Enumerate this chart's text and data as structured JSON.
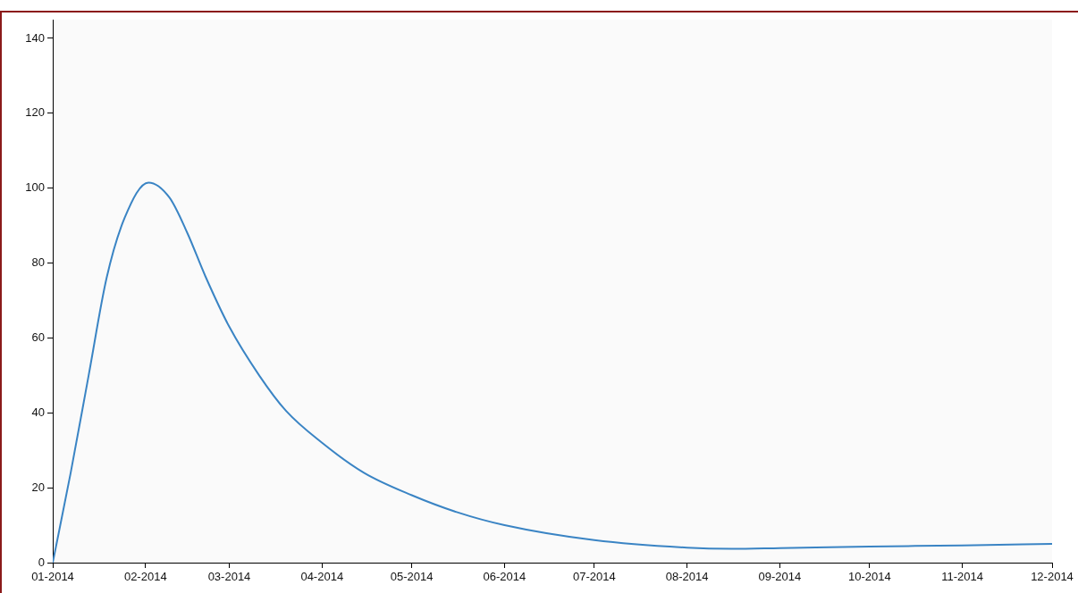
{
  "chart_data": {
    "type": "line",
    "x": [
      "2014-01-01",
      "2014-01-07",
      "2014-01-13",
      "2014-01-19",
      "2014-01-25",
      "2014-02-02",
      "2014-02-09",
      "2014-02-15",
      "2014-02-21",
      "2014-03-01",
      "2014-03-11",
      "2014-03-20",
      "2014-04-01",
      "2014-04-15",
      "2014-05-01",
      "2014-05-16",
      "2014-06-01",
      "2014-07-01",
      "2014-08-01",
      "2014-08-16",
      "2014-09-01",
      "2014-10-01",
      "2014-11-01",
      "2014-12-01"
    ],
    "series": [
      {
        "color": "#3a84c4",
        "values": [
          0,
          24,
          50,
          76,
          92,
          101.5,
          97.5,
          88,
          76.5,
          63,
          50,
          40.5,
          32,
          24,
          18,
          13.5,
          10,
          6,
          4,
          3.7,
          3.9,
          4.3,
          4.6,
          5
        ]
      }
    ],
    "xlim": [
      "2014-01-01",
      "2014-12-01"
    ],
    "xticks": [
      {
        "value": "2014-01-01",
        "label": "01-2014"
      },
      {
        "value": "2014-02-01",
        "label": "02-2014"
      },
      {
        "value": "2014-03-01",
        "label": "03-2014"
      },
      {
        "value": "2014-04-01",
        "label": "04-2014"
      },
      {
        "value": "2014-05-01",
        "label": "05-2014"
      },
      {
        "value": "2014-06-01",
        "label": "06-2014"
      },
      {
        "value": "2014-07-01",
        "label": "07-2014"
      },
      {
        "value": "2014-08-01",
        "label": "08-2014"
      },
      {
        "value": "2014-09-01",
        "label": "09-2014"
      },
      {
        "value": "2014-10-01",
        "label": "10-2014"
      },
      {
        "value": "2014-11-01",
        "label": "11-2014"
      },
      {
        "value": "2014-12-01",
        "label": "12-2014"
      }
    ],
    "ylim": [
      0,
      145
    ],
    "yticks": [
      0,
      20,
      40,
      60,
      80,
      100,
      120,
      140
    ],
    "grid": false,
    "legend": false,
    "marker": "none",
    "line_style": "solid"
  }
}
